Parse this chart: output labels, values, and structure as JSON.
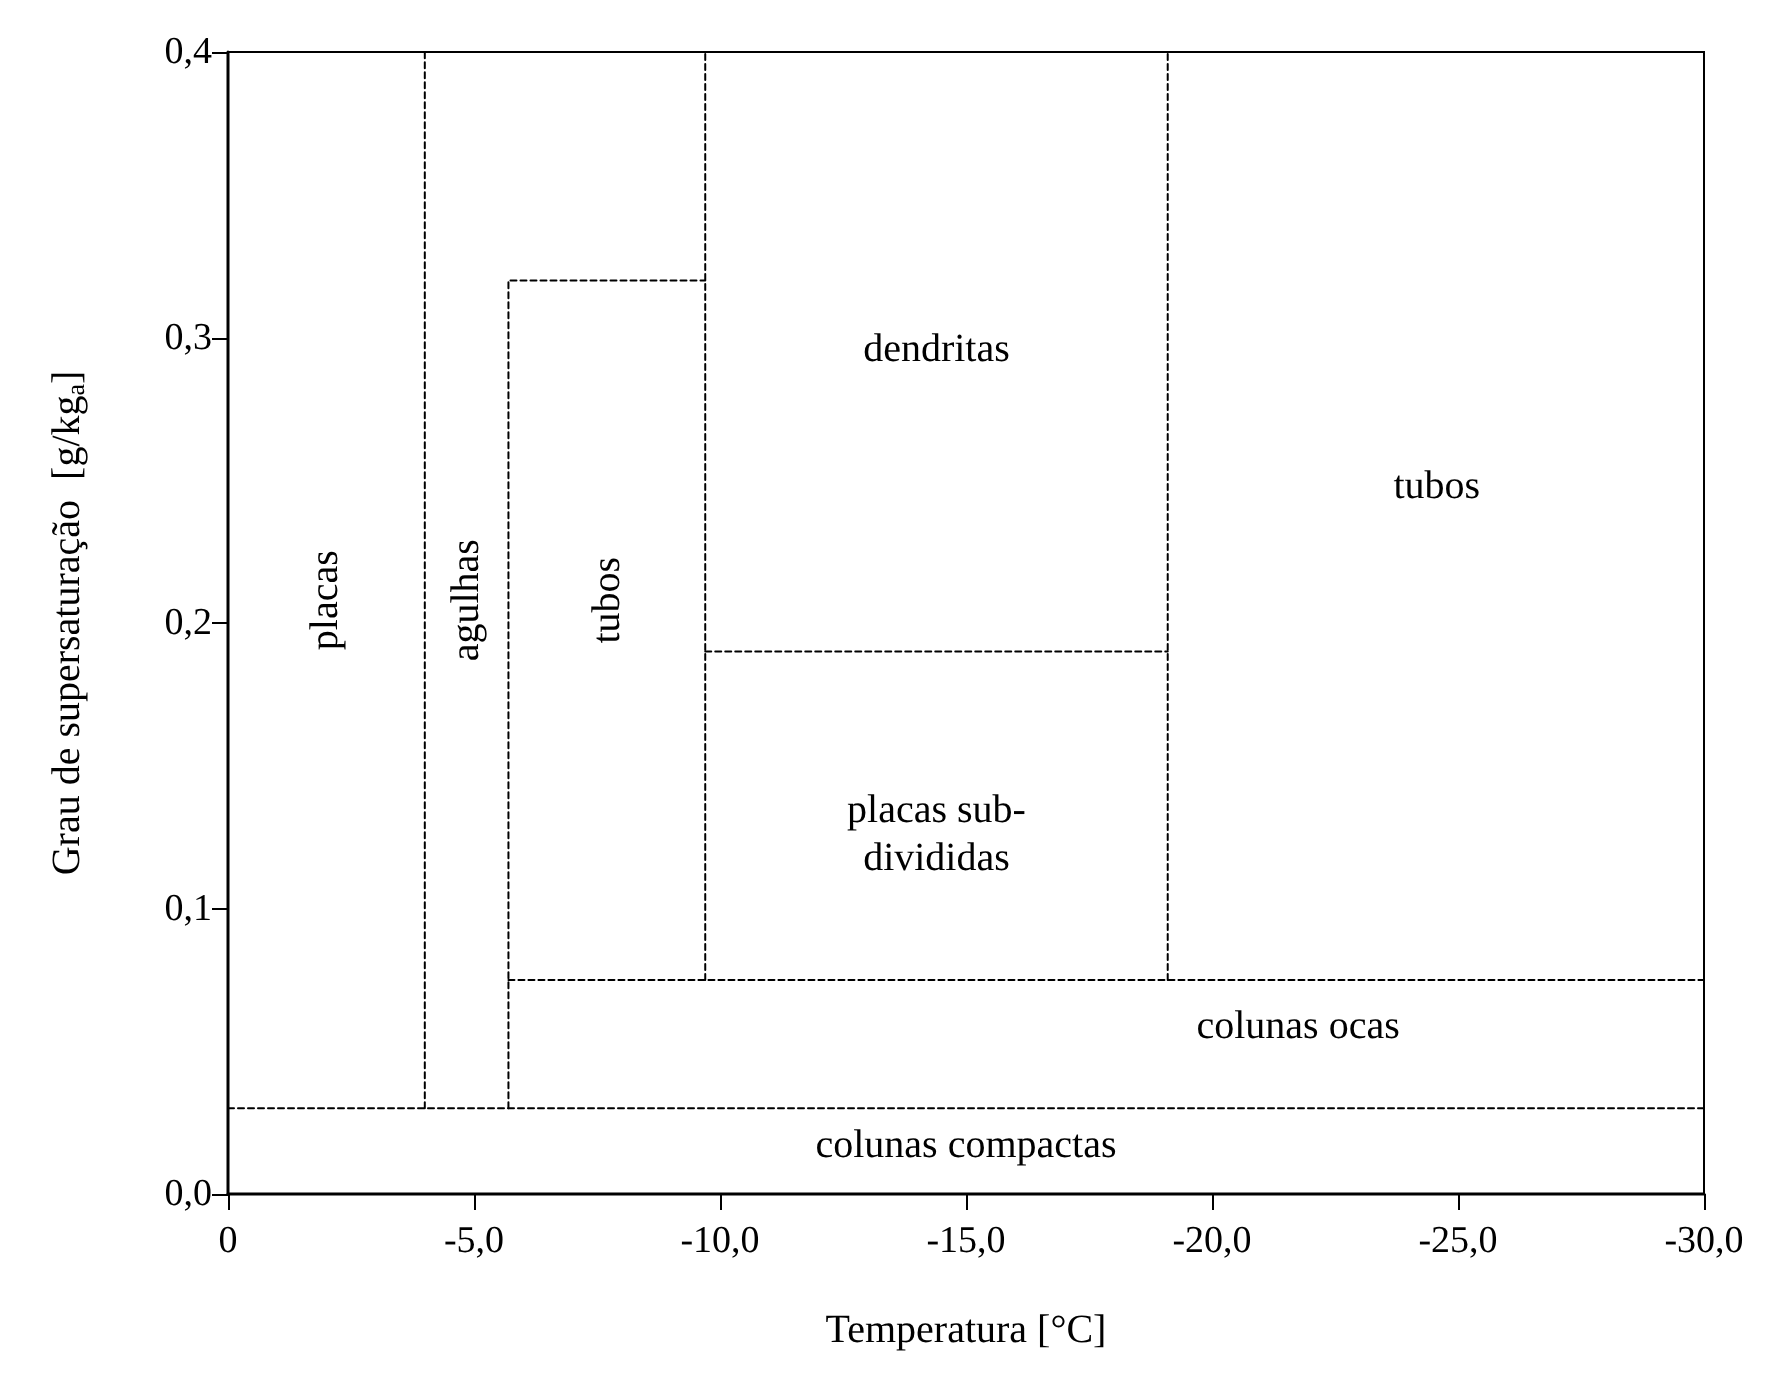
{
  "chart_data": {
    "type": "line",
    "xlabel": "Temperatura [°C]",
    "ylabel": "Grau de supersaturação  [g/kg$_{a}$]",
    "xlim": [
      0,
      -30
    ],
    "xticks": [
      0,
      {
        "value": -5,
        "label": "-5,0"
      },
      {
        "value": -10,
        "label": "-10,0"
      },
      {
        "value": -15,
        "label": "-15,0"
      },
      {
        "value": -20,
        "label": "-20,0"
      },
      {
        "value": -25,
        "label": "-25,0"
      },
      {
        "value": -30,
        "label": "-30,0"
      }
    ],
    "ylim": [
      0,
      0.4
    ],
    "yticks": [
      {
        "value": 0,
        "label": "0,0"
      },
      {
        "value": 0.1,
        "label": "0,1"
      },
      {
        "value": 0.2,
        "label": "0,2"
      },
      {
        "value": 0.3,
        "label": "0,3"
      },
      {
        "value": 0.4,
        "label": "0,4"
      }
    ],
    "grid": false,
    "marker": "none",
    "line_style": "dashed",
    "series": [
      {
        "color": "#000000",
        "x": [
          0,
          -30
        ],
        "values": [
          0.03,
          0.03
        ]
      },
      {
        "color": "#000000",
        "x": [
          -4,
          -4
        ],
        "values": [
          0.03,
          0.4
        ]
      },
      {
        "color": "#000000",
        "x": [
          -5.7,
          -5.7,
          -9.7
        ],
        "values": [
          0.03,
          0.32,
          0.32
        ]
      },
      {
        "color": "#000000",
        "x": [
          -5.7,
          -30
        ],
        "values": [
          0.075,
          0.075
        ]
      },
      {
        "color": "#000000",
        "x": [
          -9.7,
          -9.7
        ],
        "values": [
          0.075,
          0.4
        ]
      },
      {
        "color": "#000000",
        "x": [
          -9.7,
          -19.1
        ],
        "values": [
          0.19,
          0.19
        ]
      },
      {
        "color": "#000000",
        "x": [
          -19.1,
          -19.1
        ],
        "values": [
          0.075,
          0.4
        ]
      }
    ],
    "annotations": [
      "placas",
      "agulhas",
      "tubos",
      "dendritas",
      "tubos",
      "placas sub-\ndivididas",
      "colunas ocas",
      "colunas compactas"
    ]
  }
}
